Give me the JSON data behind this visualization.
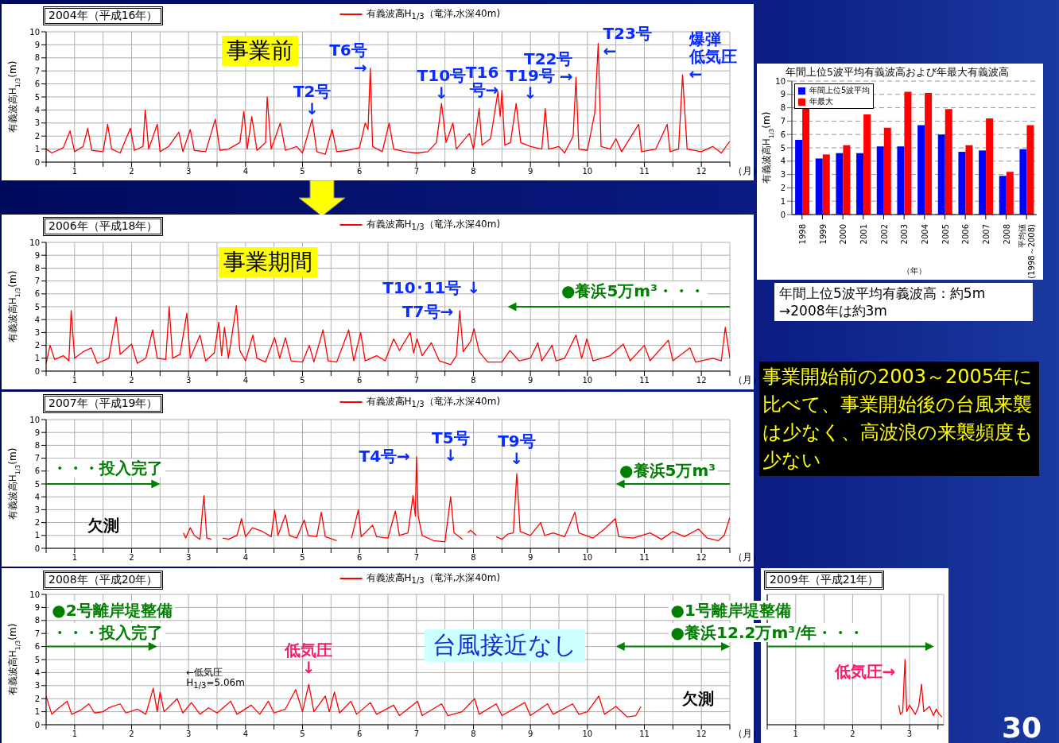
{
  "chart_data": [
    {
      "type": "line",
      "title": "2004年（平成16年）",
      "xlabel": "（月）",
      "ylabel": "有義波高H$_{1/3}$(m)",
      "legend": "top",
      "grid": true,
      "xlim": [
        0,
        12
      ],
      "ylim": [
        0,
        10
      ],
      "yticks": [
        0,
        1,
        2,
        3,
        4,
        5,
        6,
        7,
        8,
        9,
        10
      ],
      "xticks": [
        {
          "value": 0,
          "label": null
        },
        {
          "value": 0.5,
          "label": "1"
        },
        {
          "value": 1,
          "label": null
        },
        {
          "value": 1.5,
          "label": "2"
        },
        {
          "value": 2,
          "label": null
        },
        {
          "value": 2.5,
          "label": "3"
        },
        {
          "value": 3,
          "label": null
        },
        {
          "value": 3.5,
          "label": "4"
        },
        {
          "value": 4,
          "label": null
        },
        {
          "value": 4.5,
          "label": "5"
        },
        {
          "value": 5,
          "label": null
        },
        {
          "value": 5.5,
          "label": "6"
        },
        {
          "value": 6,
          "label": null
        },
        {
          "value": 6.5,
          "label": "7"
        },
        {
          "value": 7,
          "label": null
        },
        {
          "value": 7.5,
          "label": "8"
        },
        {
          "value": 8,
          "label": null
        },
        {
          "value": 8.5,
          "label": "9"
        },
        {
          "value": 9,
          "label": null
        },
        {
          "value": 9.5,
          "label": "10"
        },
        {
          "value": 10,
          "label": null
        },
        {
          "value": 10.5,
          "label": "11"
        },
        {
          "value": 11,
          "label": null
        },
        {
          "value": 11.5,
          "label": "12"
        },
        {
          "value": 12,
          "label": null
        }
      ],
      "series": [
        {
          "name": "有義波高H$_{1/3}$（竜洋,水深40m)",
          "color": "#ff0000",
          "x": [
            0,
            0.1,
            0.3,
            0.42,
            0.5,
            0.65,
            0.73,
            0.8,
            1.0,
            1.08,
            1.15,
            1.3,
            1.48,
            1.55,
            1.7,
            1.74,
            1.8,
            1.95,
            2.0,
            2.15,
            2.33,
            2.4,
            2.53,
            2.6,
            2.8,
            2.97,
            3.05,
            3.2,
            3.4,
            3.47,
            3.53,
            3.61,
            3.7,
            3.85,
            3.88,
            3.95,
            4.11,
            4.2,
            4.4,
            4.5,
            4.67,
            4.75,
            4.9,
            5.02,
            5.1,
            5.3,
            5.5,
            5.6,
            5.65,
            5.69,
            5.73,
            5.9,
            6.02,
            6.1,
            6.3,
            6.5,
            6.7,
            6.85,
            6.94,
            7.02,
            7.14,
            7.2,
            7.43,
            7.5,
            7.6,
            7.65,
            7.8,
            7.88,
            7.93,
            7.97,
            8.0,
            8.05,
            8.15,
            8.25,
            8.33,
            8.5,
            8.7,
            8.76,
            8.82,
            9.0,
            9.1,
            9.25,
            9.3,
            9.35,
            9.5,
            9.63,
            9.69,
            9.74,
            9.9,
            10.0,
            10.1,
            10.4,
            10.45,
            10.7,
            10.9,
            10.95,
            11.1,
            11.17,
            11.25,
            11.5,
            11.7,
            11.85,
            12
          ],
          "values": [
            1.0,
            0.7,
            1.1,
            2.4,
            0.8,
            1.2,
            2.6,
            0.9,
            0.8,
            2.9,
            1.0,
            0.7,
            2.6,
            0.9,
            1.2,
            4.0,
            1.0,
            2.9,
            0.8,
            1.2,
            2.3,
            0.8,
            2.5,
            0.9,
            0.8,
            3.3,
            0.9,
            1.0,
            1.5,
            3.9,
            1.0,
            3.5,
            0.9,
            1.5,
            5.0,
            1.0,
            3.0,
            0.9,
            1.2,
            0.7,
            3.3,
            0.8,
            0.6,
            2.5,
            0.8,
            0.9,
            1.1,
            3.0,
            2.5,
            7.2,
            1.2,
            0.8,
            3.0,
            1.0,
            0.8,
            0.7,
            0.8,
            1.5,
            4.5,
            1.5,
            3.0,
            1.0,
            2.2,
            1.0,
            4.1,
            1.3,
            1.8,
            4.0,
            5.4,
            3.5,
            5.5,
            1.3,
            1.5,
            4.5,
            1.5,
            1.2,
            1.0,
            4.1,
            1.0,
            1.2,
            0.7,
            2.0,
            6.5,
            1.0,
            0.9,
            3.8,
            9.1,
            1.2,
            1.0,
            1.8,
            0.8,
            2.9,
            0.8,
            1.0,
            2.9,
            0.8,
            1.0,
            6.7,
            1.0,
            0.8,
            1.2,
            0.7,
            1.6
          ]
        }
      ],
      "annotations": [
        "事業前",
        {
          "text": "T2号↓",
          "x": 4.67,
          "y": 3.3
        },
        {
          "text": "T6号→",
          "x": 5.69,
          "y": 7.2
        },
        {
          "text": "T10号↓",
          "x": 6.94,
          "y": 4.5
        },
        {
          "text": "T16号→",
          "x": 8.0,
          "y": 5.5
        },
        {
          "text": "T19号↓",
          "x": 8.25,
          "y": 4.5
        },
        {
          "text": "T22号→",
          "x": 9.3,
          "y": 6.5
        },
        {
          "text": "T23号←",
          "x": 9.69,
          "y": 9.1
        },
        {
          "text": "爆弾低気圧←",
          "x": 11.17,
          "y": 6.7
        }
      ]
    },
    {
      "type": "line",
      "title": "2006年（平成18年）",
      "xlabel": "（月）",
      "ylabel": "有義波高H$_{1/3}$(m)",
      "legend": "top",
      "grid": true,
      "xlim": [
        0,
        12
      ],
      "ylim": [
        0,
        10
      ],
      "yticks": [
        0,
        1,
        2,
        3,
        4,
        5,
        6,
        7,
        8,
        9,
        10
      ],
      "xticks": [
        {
          "value": 0,
          "label": null
        },
        {
          "value": 0.5,
          "label": "1"
        },
        {
          "value": 1,
          "label": null
        },
        {
          "value": 1.5,
          "label": "2"
        },
        {
          "value": 2,
          "label": null
        },
        {
          "value": 2.5,
          "label": "3"
        },
        {
          "value": 3,
          "label": null
        },
        {
          "value": 3.5,
          "label": "4"
        },
        {
          "value": 4,
          "label": null
        },
        {
          "value": 4.5,
          "label": "5"
        },
        {
          "value": 5,
          "label": null
        },
        {
          "value": 5.5,
          "label": "6"
        },
        {
          "value": 6,
          "label": null
        },
        {
          "value": 6.5,
          "label": "7"
        },
        {
          "value": 7,
          "label": null
        },
        {
          "value": 7.5,
          "label": "8"
        },
        {
          "value": 8,
          "label": null
        },
        {
          "value": 8.5,
          "label": "9"
        },
        {
          "value": 9,
          "label": null
        },
        {
          "value": 9.5,
          "label": "10"
        },
        {
          "value": 10,
          "label": null
        },
        {
          "value": 10.5,
          "label": "11"
        },
        {
          "value": 11,
          "label": null
        },
        {
          "value": 11.5,
          "label": "12"
        },
        {
          "value": 12,
          "label": null
        }
      ],
      "series": [
        {
          "name": "有義波高H$_{1/3}$（竜洋,水深40m)",
          "color": "#ff0000",
          "x": [
            0,
            0.07,
            0.15,
            0.3,
            0.4,
            0.44,
            0.5,
            0.65,
            0.79,
            0.9,
            1.1,
            1.23,
            1.3,
            1.5,
            1.6,
            1.75,
            1.87,
            1.95,
            2.1,
            2.16,
            2.22,
            2.35,
            2.47,
            2.53,
            2.7,
            2.8,
            2.95,
            3.03,
            3.08,
            3.13,
            3.2,
            3.34,
            3.4,
            3.5,
            3.63,
            3.7,
            3.85,
            4.01,
            4.1,
            4.2,
            4.3,
            4.5,
            4.62,
            4.7,
            4.86,
            4.95,
            5.1,
            5.31,
            5.4,
            5.52,
            5.6,
            5.8,
            5.95,
            6.1,
            6.2,
            6.39,
            6.45,
            6.51,
            6.6,
            6.76,
            6.9,
            7.1,
            7.2,
            7.26,
            7.32,
            7.45,
            7.51,
            7.6,
            7.75,
            8.0,
            8.14,
            8.3,
            8.5,
            8.63,
            8.7,
            8.88,
            8.95,
            9.1,
            9.3,
            9.4,
            9.49,
            9.6,
            9.9,
            10.13,
            10.25,
            10.5,
            10.6,
            10.92,
            11.0,
            11.3,
            11.4,
            11.7,
            11.85,
            11.92,
            12.0
          ],
          "values": [
            0.6,
            2.0,
            0.9,
            1.2,
            0.8,
            4.7,
            1.0,
            1.5,
            1.8,
            0.6,
            1.0,
            4.2,
            1.3,
            2.1,
            0.6,
            1.0,
            3.2,
            1.0,
            0.9,
            5.0,
            1.0,
            1.3,
            4.5,
            1.0,
            2.8,
            0.8,
            1.4,
            3.8,
            1.2,
            3.4,
            1.0,
            5.1,
            1.6,
            0.8,
            2.8,
            1.0,
            0.7,
            2.6,
            1.0,
            2.6,
            0.8,
            0.7,
            2.0,
            0.7,
            3.2,
            0.8,
            0.7,
            3.2,
            0.8,
            3.0,
            0.8,
            1.2,
            0.8,
            2.5,
            1.6,
            3.0,
            1.4,
            2.5,
            1.2,
            2.2,
            0.8,
            0.5,
            1.2,
            4.7,
            1.5,
            2.3,
            3.3,
            1.5,
            0.7,
            0.7,
            1.6,
            0.8,
            1.0,
            2.2,
            0.8,
            2.0,
            0.8,
            1.0,
            2.8,
            1.0,
            2.5,
            0.8,
            1.2,
            2.1,
            0.8,
            2.0,
            0.8,
            2.4,
            0.8,
            1.8,
            0.7,
            1.0,
            0.8,
            3.4,
            1.0
          ]
        }
      ],
      "annotations": [
        "事業期間",
        "●養浜5万m³・・・",
        {
          "text": "T7号→",
          "x": 7.26,
          "y": 4.7
        },
        {
          "text": "T10･11号 ↓",
          "x": 7.51,
          "y": 3.3
        }
      ]
    },
    {
      "type": "line",
      "title": "2007年（平成19年）",
      "xlabel": "（月）",
      "ylabel": "有義波高H$_{1/3}$(m)",
      "legend": "top",
      "grid": true,
      "xlim": [
        0,
        12
      ],
      "ylim": [
        0,
        10
      ],
      "yticks": [
        0,
        1,
        2,
        3,
        4,
        5,
        6,
        7,
        8,
        9,
        10
      ],
      "xticks": [
        {
          "value": 0,
          "label": null
        },
        {
          "value": 0.5,
          "label": "1"
        },
        {
          "value": 1,
          "label": null
        },
        {
          "value": 1.5,
          "label": "2"
        },
        {
          "value": 2,
          "label": null
        },
        {
          "value": 2.5,
          "label": "3"
        },
        {
          "value": 3,
          "label": null
        },
        {
          "value": 3.5,
          "label": "4"
        },
        {
          "value": 4,
          "label": null
        },
        {
          "value": 4.5,
          "label": "5"
        },
        {
          "value": 5,
          "label": null
        },
        {
          "value": 5.5,
          "label": "6"
        },
        {
          "value": 6,
          "label": null
        },
        {
          "value": 6.5,
          "label": "7"
        },
        {
          "value": 7,
          "label": null
        },
        {
          "value": 7.5,
          "label": "8"
        },
        {
          "value": 8,
          "label": null
        },
        {
          "value": 8.5,
          "label": "9"
        },
        {
          "value": 9,
          "label": null
        },
        {
          "value": 9.5,
          "label": "10"
        },
        {
          "value": 10,
          "label": null
        },
        {
          "value": 10.5,
          "label": "11"
        },
        {
          "value": 11,
          "label": null
        },
        {
          "value": 11.5,
          "label": "12"
        },
        {
          "value": 12,
          "label": null
        }
      ],
      "series": [
        {
          "name": "有義波高H$_{1/3}$（竜洋,水深40m)",
          "color": "#ff0000",
          "x": [
            2.41,
            2.45,
            2.53,
            2.6,
            2.7,
            2.77,
            2.82,
            2.9,
            3.0,
            3.1,
            3.2,
            3.35,
            3.43,
            3.5,
            3.62,
            3.8,
            3.95,
            4.01,
            4.07,
            4.2,
            4.27,
            4.4,
            4.53,
            4.6,
            4.75,
            4.83,
            4.9,
            5.1,
            5.25,
            5.36,
            5.48,
            5.53,
            5.73,
            5.8,
            6.0,
            6.13,
            6.2,
            6.35,
            6.44,
            6.48,
            6.5,
            6.53,
            6.6,
            6.8,
            7.0,
            7.1,
            7.16,
            7.31,
            7.35,
            7.4,
            7.45,
            7.55,
            7.65,
            7.9,
            8.0,
            8.1,
            8.2,
            8.26,
            8.32,
            8.5,
            8.68,
            8.75,
            8.9,
            9.1,
            9.28,
            9.35,
            9.6,
            9.8,
            9.99,
            10.05,
            10.3,
            10.6,
            10.8,
            11.0,
            11.2,
            11.45,
            11.6,
            11.8,
            11.9,
            12.0
          ],
          "values": [
            1.2,
            0.8,
            1.6,
            1.0,
            0.7,
            4.1,
            0.8,
            0.7,
            null,
            0.8,
            0.7,
            1.0,
            2.3,
            0.9,
            1.6,
            1.3,
            0.9,
            3.0,
            1.0,
            2.6,
            1.0,
            0.8,
            2.2,
            1.0,
            0.9,
            2.8,
            0.9,
            0.6,
            null,
            0.8,
            3.0,
            0.9,
            1.8,
            0.9,
            0.8,
            2.9,
            1.0,
            1.2,
            4.1,
            2.5,
            7.1,
            2.5,
            1.0,
            0.6,
            0.5,
            4.0,
            1.2,
            0.7,
            null,
            1.2,
            1.4,
            1.0,
            null,
            0.9,
            0.7,
            1.1,
            1.2,
            5.8,
            1.3,
            1.0,
            2.0,
            1.0,
            1.2,
            0.9,
            2.8,
            1.2,
            0.8,
            1.5,
            2.3,
            0.9,
            0.8,
            1.2,
            0.7,
            1.3,
            0.9,
            1.5,
            0.8,
            0.6,
            1.0,
            2.4
          ]
        }
      ],
      "annotations": [
        "欠測",
        "・・・投入完了",
        "●養浜5万m³",
        {
          "text": "T4号→",
          "x": 6.5,
          "y": 7.1
        },
        {
          "text": "T5号↓",
          "x": 7.1,
          "y": 4.0
        },
        {
          "text": "T9号↓",
          "x": 8.26,
          "y": 5.8
        }
      ]
    },
    {
      "type": "line",
      "title": "2008年（平成20年）",
      "xlabel": "（月）",
      "ylabel": "有義波高H$_{1/3}$(m)",
      "legend": "top",
      "grid": true,
      "xlim": [
        0,
        12
      ],
      "ylim": [
        0,
        10
      ],
      "yticks": [
        0,
        1,
        2,
        3,
        4,
        5,
        6,
        7,
        8,
        9,
        10
      ],
      "xticks": [
        {
          "value": 0,
          "label": null
        },
        {
          "value": 0.5,
          "label": "1"
        },
        {
          "value": 1,
          "label": null
        },
        {
          "value": 1.5,
          "label": "2"
        },
        {
          "value": 2,
          "label": null
        },
        {
          "value": 2.5,
          "label": "3"
        },
        {
          "value": 3,
          "label": null
        },
        {
          "value": 3.5,
          "label": "4"
        },
        {
          "value": 4,
          "label": null
        },
        {
          "value": 4.5,
          "label": "5"
        },
        {
          "value": 5,
          "label": null
        },
        {
          "value": 5.5,
          "label": "6"
        },
        {
          "value": 6,
          "label": null
        },
        {
          "value": 6.5,
          "label": "7"
        },
        {
          "value": 7,
          "label": null
        },
        {
          "value": 7.5,
          "label": "8"
        },
        {
          "value": 8,
          "label": null
        },
        {
          "value": 8.5,
          "label": "9"
        },
        {
          "value": 9,
          "label": null
        },
        {
          "value": 9.5,
          "label": "10"
        },
        {
          "value": 10,
          "label": null
        },
        {
          "value": 10.5,
          "label": "11"
        },
        {
          "value": 11,
          "label": null
        },
        {
          "value": 11.5,
          "label": "12"
        },
        {
          "value": 12,
          "label": null
        }
      ],
      "series": [
        {
          "name": "有義波高H$_{1/3}$（竜洋,水深40m)",
          "color": "#ff0000",
          "x": [
            0,
            0.1,
            0.2,
            0.37,
            0.45,
            0.6,
            0.75,
            0.85,
            1.0,
            1.1,
            1.3,
            1.4,
            1.6,
            1.75,
            1.88,
            1.95,
            2.0,
            2.07,
            2.3,
            2.4,
            2.55,
            2.7,
            2.85,
            3.0,
            3.24,
            3.35,
            3.6,
            3.75,
            3.9,
            4.0,
            4.2,
            4.38,
            4.5,
            4.61,
            4.7,
            4.9,
            4.97,
            5.06,
            5.15,
            5.35,
            5.45,
            5.69,
            5.8,
            6.1,
            6.2,
            6.52,
            6.6,
            6.94,
            7.05,
            7.3,
            7.52,
            7.6,
            7.9,
            8.0,
            8.4,
            8.5,
            8.8,
            8.9,
            9.24,
            9.35,
            9.5,
            9.7,
            9.8,
            10.0,
            10.2,
            10.35,
            10.44
          ],
          "values": [
            2.2,
            0.8,
            1.2,
            1.8,
            0.8,
            1.1,
            1.6,
            0.9,
            1.0,
            1.3,
            1.6,
            0.9,
            1.2,
            0.8,
            2.8,
            1.0,
            2.5,
            1.0,
            2.0,
            0.9,
            1.7,
            0.8,
            1.3,
            0.9,
            1.8,
            0.8,
            1.5,
            0.8,
            1.8,
            0.9,
            1.2,
            2.7,
            1.0,
            3.1,
            1.0,
            2.2,
            1.0,
            2.5,
            0.9,
            1.8,
            0.8,
            1.7,
            0.8,
            1.5,
            0.7,
            1.8,
            0.7,
            1.6,
            0.7,
            1.0,
            2.0,
            0.8,
            1.6,
            0.7,
            1.7,
            0.7,
            1.6,
            0.8,
            1.6,
            0.8,
            1.0,
            2.2,
            0.8,
            1.4,
            0.6,
            0.7,
            1.4
          ]
        }
      ],
      "annotations": [
        "台風接近なし",
        "欠測",
        "←低気圧\nH$_{1/3}$=5.06m",
        "●2号離岸堤整備",
        "・・・投入完了",
        "●1号離岸堤整備",
        "●養浜12.2万m³/年・・・",
        {
          "text": "低気圧↓",
          "x": 4.61,
          "y": 3.1
        }
      ]
    },
    {
      "type": "line",
      "title": "2009年（平成21年）",
      "grid": true,
      "tick_labels": "x",
      "xlim": [
        0,
        3.1
      ],
      "ylim": [
        0,
        10
      ],
      "yticks": [
        0,
        1,
        2,
        3,
        4,
        5,
        6,
        7,
        8,
        9,
        10
      ],
      "xticks": [
        {
          "value": 0,
          "label": null
        },
        {
          "value": 0.5,
          "label": "1"
        },
        {
          "value": 1,
          "label": null
        },
        {
          "value": 1.5,
          "label": "2"
        },
        {
          "value": 2,
          "label": null
        },
        {
          "value": 2.5,
          "label": "3"
        },
        {
          "value": 3,
          "label": null
        }
      ],
      "series": [
        {
          "color": "#ff0000",
          "x": [
            2.31,
            2.34,
            2.38,
            2.42,
            2.45,
            2.5,
            2.6,
            2.66,
            2.71,
            2.75,
            2.85,
            2.92,
            2.97,
            3.02,
            3.07
          ],
          "values": [
            1.5,
            0.8,
            1.0,
            5.0,
            1.0,
            1.5,
            0.8,
            1.4,
            3.1,
            1.0,
            1.4,
            0.7,
            1.2,
            0.8,
            0.6
          ]
        }
      ],
      "annotations": [
        {
          "text": "低気圧→",
          "x": 2.42,
          "y": 5.0
        }
      ]
    },
    {
      "type": "bar",
      "title": "年間上位5波平均有義波高および年最大有義波高",
      "xlabel": "（年）",
      "ylabel": "有義波高H$_{1/3}$(m)",
      "legend": "top left",
      "grid": "y",
      "ylim": [
        0,
        10
      ],
      "yticks": [
        0,
        1,
        2,
        3,
        4,
        5,
        6,
        7,
        8,
        9,
        10
      ],
      "categories": [
        "1998",
        "1999",
        "2000",
        "2001",
        "2002",
        "2003",
        "2004",
        "2005",
        "2006",
        "2007",
        "2008",
        "平均値\n(1998～2008)"
      ],
      "series": [
        {
          "name": "年間上位5波平均",
          "color": "#0000ff",
          "values": [
            5.6,
            4.2,
            4.6,
            4.6,
            5.1,
            5.1,
            6.7,
            6.0,
            4.7,
            4.8,
            2.9,
            4.9
          ]
        },
        {
          "name": "年最大",
          "color": "#ff0000",
          "values": [
            8.0,
            4.5,
            5.2,
            7.5,
            6.5,
            9.2,
            9.1,
            7.9,
            5.2,
            7.2,
            3.2,
            6.7
          ]
        }
      ],
      "annotations": [
        "年間上位5波平均有義波高：約5m\n→2008年は約3m"
      ]
    },
    {
      "type": "other",
      "annotations": [
        "事業開始前の2003～2005年に比べて、事業開始後の台風来襲は少なく、高波浪の来襲頻度も少ない",
        "30"
      ]
    }
  ]
}
